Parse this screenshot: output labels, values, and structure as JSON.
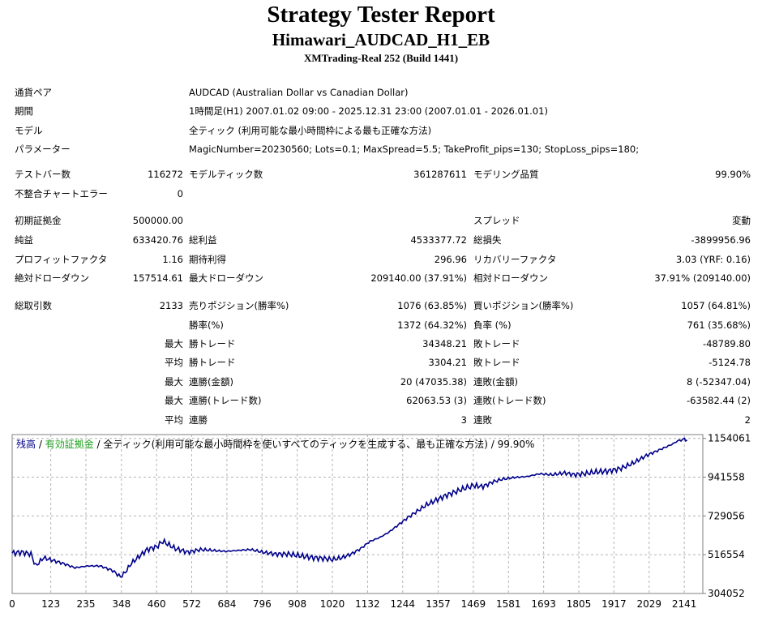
{
  "header": {
    "title": "Strategy Tester Report",
    "expert": "Himawari_AUDCAD_H1_EB",
    "server": "XMTrading-Real 252 (Build 1441)"
  },
  "settings": [
    {
      "label": "通貨ペア",
      "value": "AUDCAD (Australian Dollar vs Canadian Dollar)"
    },
    {
      "label": "期間",
      "value": "1時間足(H1) 2007.01.02 09:00 - 2025.12.31 23:00 (2007.01.01 - 2026.01.01)"
    },
    {
      "label": "モデル",
      "value": "全ティック (利用可能な最小時間枠による最も正確な方法)"
    },
    {
      "label": "パラメーター",
      "value": "MagicNumber=20230560; Lots=0.1; MaxSpread=5.5; TakeProfit_pips=130; StopLoss_pips=180;"
    }
  ],
  "stats": {
    "test_bars_label": "テストバー数",
    "test_bars": "116272",
    "model_ticks_label": "モデルティック数",
    "model_ticks": "361287611",
    "modeling_quality_label": "モデリング品質",
    "modeling_quality": "99.90%",
    "mismatch_label": "不整合チャートエラー",
    "mismatch": "0",
    "initial_deposit_label": "初期証拠金",
    "initial_deposit": "500000.00",
    "spread_label": "スプレッド",
    "spread": "変動",
    "net_profit_label": "純益",
    "net_profit": "633420.76",
    "gross_profit_label": "総利益",
    "gross_profit": "4533377.72",
    "gross_loss_label": "総損失",
    "gross_loss": "-3899956.96",
    "profit_factor_label": "プロフィットファクタ",
    "profit_factor": "1.16",
    "expected_payoff_label": "期待利得",
    "expected_payoff": "296.96",
    "recovery_factor_label": "リカバリーファクタ",
    "recovery_factor": "3.03 (YRF: 0.16)",
    "abs_drawdown_label": "絶対ドローダウン",
    "abs_drawdown": "157514.61",
    "max_drawdown_label": "最大ドローダウン",
    "max_drawdown": "209140.00 (37.91%)",
    "rel_drawdown_label": "相対ドローダウン",
    "rel_drawdown": "37.91% (209140.00)",
    "total_trades_label": "総取引数",
    "total_trades": "2133",
    "short_label": "売りポジション(勝率%)",
    "short": "1076 (63.85%)",
    "long_label": "買いポジション(勝率%)",
    "long": "1057 (64.81%)",
    "win_rate_label": "勝率(%)",
    "win_rate": "1372 (64.32%)",
    "loss_rate_label": "負率 (%)",
    "loss_rate": "761 (35.68%)",
    "largest_label": "最大",
    "largest_win_label": "勝トレード",
    "largest_win": "34348.21",
    "largest_loss_label": "敗トレード",
    "largest_loss": "-48789.80",
    "average_label": "平均",
    "average_win_label": "勝トレード",
    "average_win": "3304.21",
    "average_loss_label": "敗トレード",
    "average_loss": "-5124.78",
    "max_cons_label": "最大",
    "max_cons_wins_label": "連勝(金額)",
    "max_cons_wins": "20 (47035.38)",
    "max_cons_losses_label": "連敗(金額)",
    "max_cons_losses": "8 (-52347.04)",
    "max_cons2_label": "最大",
    "max_cons_profit_label": "連勝(トレード数)",
    "max_cons_profit": "62063.53 (3)",
    "max_cons_loss_label": "連敗(トレード数)",
    "max_cons_loss": "-63582.44 (2)",
    "avg_cons_label": "平均",
    "avg_cons_wins_label": "連勝",
    "avg_cons_wins": "3",
    "avg_cons_losses_label": "連敗",
    "avg_cons_losses": "2"
  },
  "chart_legend": {
    "balance": "残高",
    "sep1": " / ",
    "equity": "有効証拠金",
    "rest": " / 全ティック(利用可能な最小時間枠を使いすべてのティックを生成する、最も正確な方法) / 99.90%"
  },
  "colors": {
    "balance": "#00008b",
    "equity": "#1a9e1a",
    "grid": "#b4b4b4"
  },
  "chart_data": {
    "type": "line",
    "title": "",
    "xlabel": "",
    "ylabel": "",
    "x_ticks": [
      0,
      123,
      235,
      348,
      460,
      572,
      684,
      796,
      908,
      1020,
      1132,
      1244,
      1357,
      1469,
      1581,
      1693,
      1805,
      1917,
      2029,
      2141
    ],
    "y_ticks": [
      304052,
      516554,
      729056,
      941558,
      1154061
    ],
    "xlim": [
      0,
      2200
    ],
    "ylim": [
      304052,
      1175000
    ],
    "grid": true,
    "series": [
      {
        "name": "残高",
        "x": [
          0,
          30,
          60,
          75,
          100,
          130,
          160,
          200,
          240,
          280,
          320,
          345,
          360,
          380,
          400,
          430,
          460,
          480,
          520,
          560,
          600,
          640,
          680,
          720,
          760,
          800,
          840,
          880,
          920,
          960,
          1000,
          1020,
          1050,
          1080,
          1110,
          1140,
          1170,
          1200,
          1230,
          1260,
          1290,
          1320,
          1350,
          1380,
          1410,
          1440,
          1469,
          1500,
          1530,
          1560,
          1600,
          1640,
          1680,
          1720,
          1760,
          1790,
          1820,
          1860,
          1900,
          1940,
          1980,
          2020,
          2060,
          2100,
          2120,
          2141,
          2150
        ],
        "values": [
          525000,
          530000,
          520000,
          455000,
          500000,
          485000,
          470000,
          445000,
          455000,
          455000,
          430000,
          395000,
          420000,
          470000,
          500000,
          545000,
          560000,
          590000,
          550000,
          530000,
          545000,
          540000,
          535000,
          540000,
          545000,
          530000,
          520000,
          520000,
          510000,
          500000,
          495000,
          490000,
          500000,
          520000,
          550000,
          590000,
          610000,
          640000,
          680000,
          720000,
          755000,
          790000,
          815000,
          840000,
          860000,
          880000,
          895000,
          890000,
          915000,
          930000,
          940000,
          945000,
          960000,
          955000,
          965000,
          955000,
          960000,
          970000,
          975000,
          990000,
          1020000,
          1060000,
          1090000,
          1120000,
          1140000,
          1150000,
          1145000
        ]
      }
    ]
  }
}
